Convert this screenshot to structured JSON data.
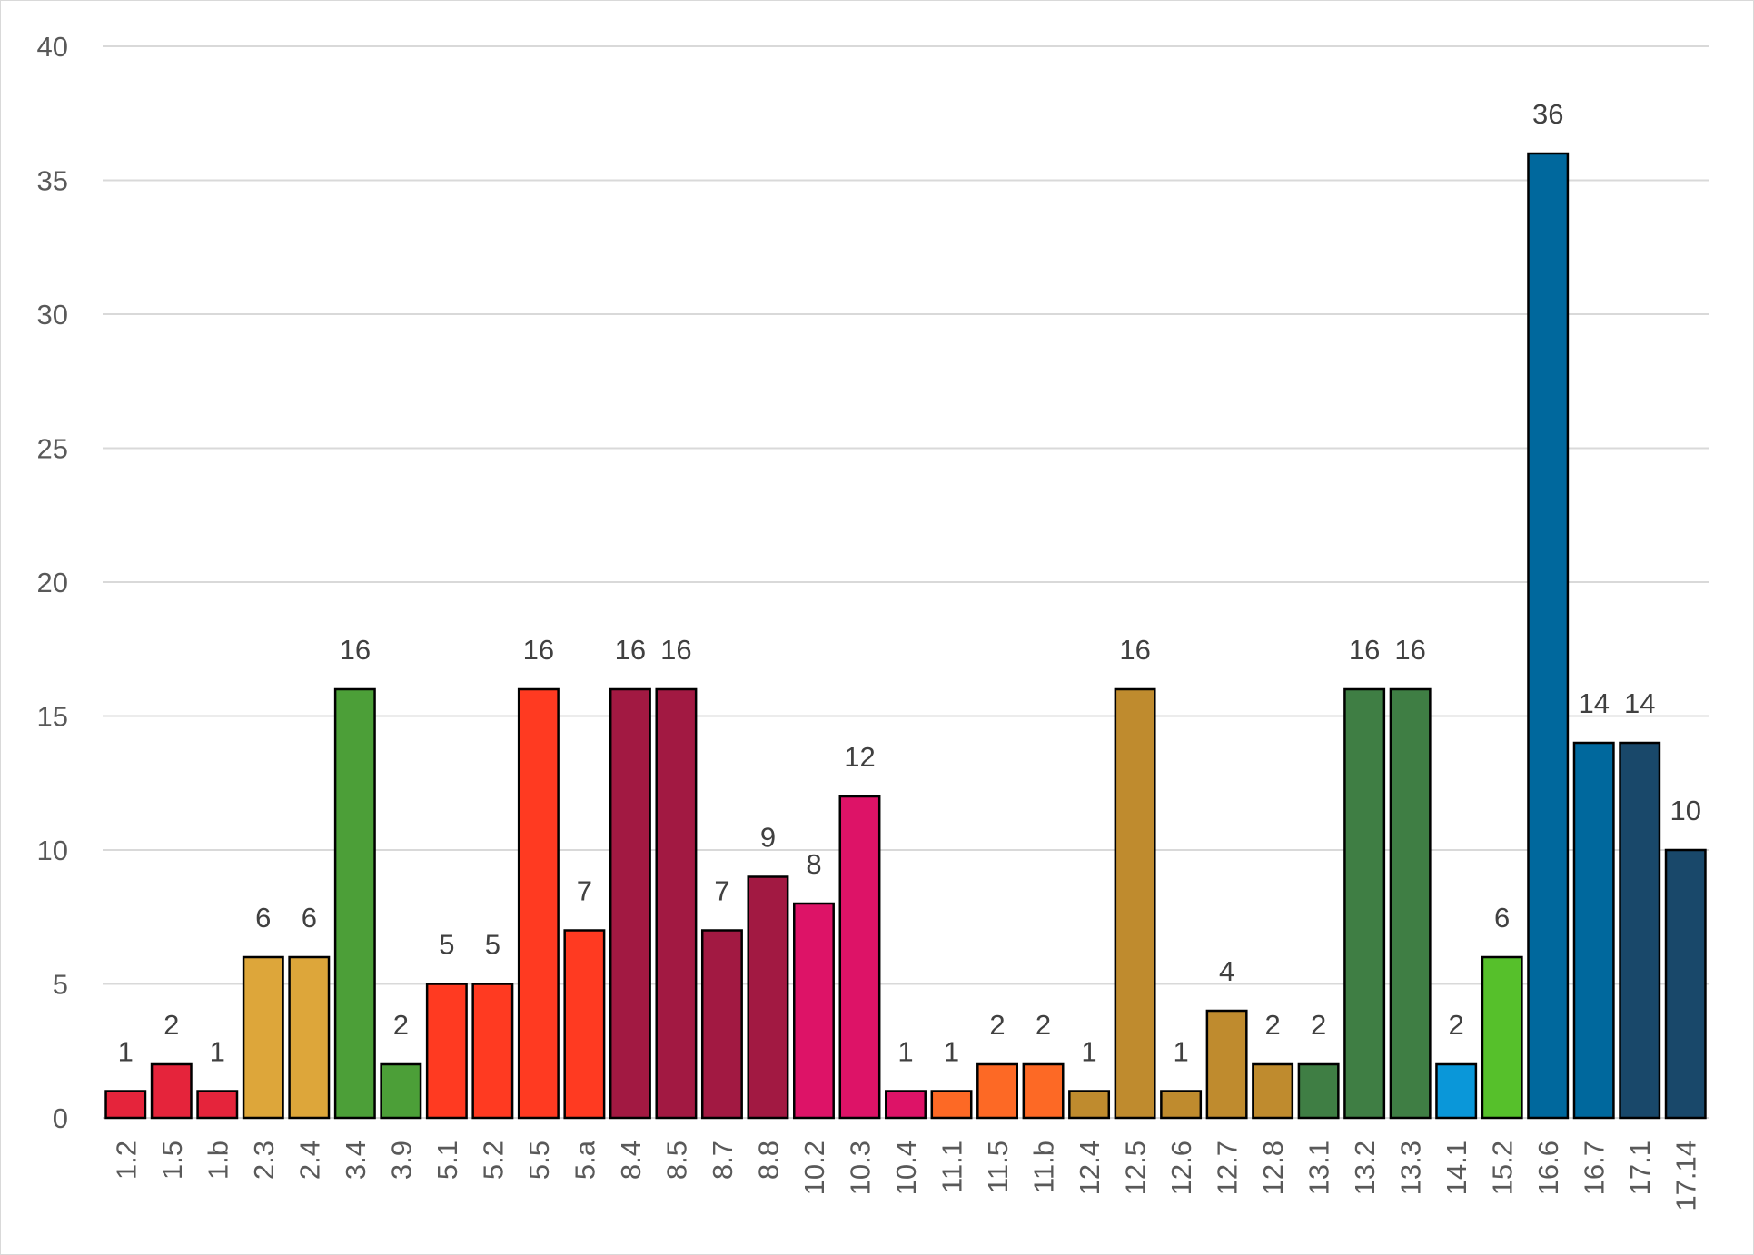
{
  "chart_data": {
    "type": "bar",
    "title": "",
    "xlabel": "",
    "ylabel": "",
    "ylim": [
      0,
      40
    ],
    "yticks": [
      0,
      5,
      10,
      15,
      20,
      25,
      30,
      35,
      40
    ],
    "grid": true,
    "legend": "none",
    "categories": [
      "1.2",
      "1.5",
      "1.b",
      "2.3",
      "2.4",
      "3.4",
      "3.9",
      "5.1",
      "5.2",
      "5.5",
      "5.a",
      "8.4",
      "8.5",
      "8.7",
      "8.8",
      "10.2",
      "10.3",
      "10.4",
      "11.1",
      "11.5",
      "11.b",
      "12.4",
      "12.5",
      "12.6",
      "12.7",
      "12.8",
      "13.1",
      "13.2",
      "13.3",
      "14.1",
      "15.2",
      "16.6",
      "16.7",
      "17.1",
      "17.14"
    ],
    "values": [
      1,
      2,
      1,
      6,
      6,
      16,
      2,
      5,
      5,
      16,
      7,
      16,
      16,
      7,
      9,
      8,
      12,
      1,
      1,
      2,
      2,
      1,
      16,
      1,
      4,
      2,
      2,
      16,
      16,
      2,
      6,
      36,
      14,
      14,
      10
    ],
    "colors": [
      "#e5243b",
      "#e5243b",
      "#e5243b",
      "#dda63a",
      "#dda63a",
      "#4c9f38",
      "#4c9f38",
      "#ff3a21",
      "#ff3a21",
      "#ff3a21",
      "#ff3a21",
      "#a21942",
      "#a21942",
      "#a21942",
      "#a21942",
      "#dd1367",
      "#dd1367",
      "#dd1367",
      "#fd6925",
      "#fd6925",
      "#fd6925",
      "#bf8b2e",
      "#bf8b2e",
      "#bf8b2e",
      "#bf8b2e",
      "#bf8b2e",
      "#3f7e44",
      "#3f7e44",
      "#3f7e44",
      "#0a97d9",
      "#56c02b",
      "#00689d",
      "#00689d",
      "#19486a",
      "#19486a"
    ]
  }
}
